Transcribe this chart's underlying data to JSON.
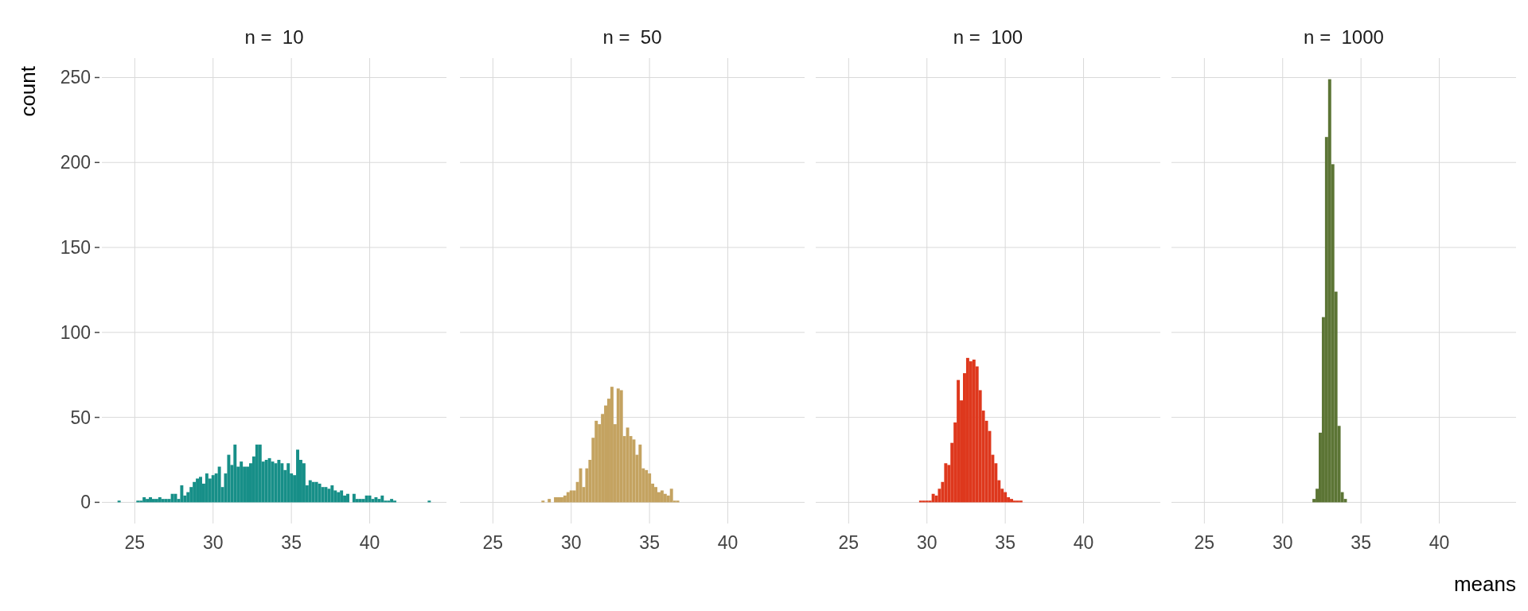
{
  "chart_data": [
    {
      "type": "histogram",
      "title": "n =  10",
      "ylabel": "count",
      "color": "#178f88",
      "xlim": [
        22.9,
        44.9
      ],
      "ylim": [
        -12.45,
        261.45
      ],
      "xticks": [
        25,
        30,
        35,
        40
      ],
      "yticks": [
        0,
        50,
        100,
        150,
        200,
        250
      ],
      "grid": true,
      "bins": [
        23.9,
        24.1,
        24.3,
        24.5,
        24.7,
        24.9,
        25.1,
        25.3,
        25.5,
        25.7,
        25.9,
        26.1,
        26.3,
        26.5,
        26.7,
        26.9,
        27.1,
        27.3,
        27.5,
        27.7,
        27.9,
        28.1,
        28.3,
        28.5,
        28.7,
        28.9,
        29.1,
        29.3,
        29.5,
        29.7,
        29.9,
        30.1,
        30.3,
        30.5,
        30.7,
        30.9,
        31.1,
        31.3,
        31.5,
        31.7,
        31.9,
        32.1,
        32.3,
        32.5,
        32.7,
        32.9,
        33.1,
        33.3,
        33.5,
        33.7,
        33.9,
        34.1,
        34.3,
        34.5,
        34.7,
        34.9,
        35.1,
        35.3,
        35.5,
        35.7,
        35.9,
        36.1,
        36.3,
        36.5,
        36.7,
        36.9,
        37.1,
        37.3,
        37.5,
        37.7,
        37.9,
        38.1,
        38.3,
        38.5,
        38.7,
        38.9,
        39.1,
        39.3,
        39.5,
        39.7,
        39.9,
        40.1,
        40.3,
        40.5,
        40.7,
        40.9,
        41.1,
        41.3,
        41.5,
        41.7,
        41.9,
        42.1,
        42.3,
        42.5,
        42.7,
        42.9,
        43.1,
        43.3,
        43.5,
        43.7,
        43.9
      ],
      "values": [
        1,
        0,
        0,
        0,
        0,
        0,
        1,
        1,
        3,
        2,
        3,
        2,
        2,
        3,
        2,
        2,
        2,
        5,
        5,
        2,
        10,
        4,
        6,
        9,
        12,
        14,
        15,
        11,
        17,
        14,
        16,
        17,
        21,
        9,
        17,
        28,
        22,
        34,
        21,
        24,
        21,
        21,
        23,
        27,
        34,
        34,
        24,
        25,
        26,
        24,
        23,
        25,
        23,
        19,
        23,
        17,
        16,
        31,
        25,
        23,
        10,
        13,
        12,
        12,
        11,
        9,
        9,
        8,
        10,
        7,
        6,
        7,
        4,
        5,
        0,
        5,
        2,
        2,
        2,
        4,
        4,
        2,
        3,
        2,
        4,
        1,
        1,
        2,
        1,
        0,
        0,
        0,
        0,
        0,
        0,
        0,
        0,
        0,
        0,
        1
      ]
    },
    {
      "type": "histogram",
      "title": "n =  50",
      "color": "#c4a361",
      "xlim": [
        22.9,
        44.9
      ],
      "ylim": [
        -12.45,
        261.45
      ],
      "xticks": [
        25,
        30,
        35,
        40
      ],
      "yticks": [
        0,
        50,
        100,
        150,
        200,
        250
      ],
      "grid": true,
      "tick_labels": "x",
      "bins": [
        28.1,
        28.3,
        28.5,
        28.7,
        28.9,
        29.1,
        29.3,
        29.5,
        29.7,
        29.9,
        30.1,
        30.3,
        30.5,
        30.7,
        30.9,
        31.1,
        31.3,
        31.5,
        31.7,
        31.9,
        32.1,
        32.3,
        32.5,
        32.7,
        32.9,
        33.1,
        33.3,
        33.5,
        33.7,
        33.9,
        34.1,
        34.3,
        34.5,
        34.7,
        34.9,
        35.1,
        35.3,
        35.5,
        35.7,
        35.9,
        36.1,
        36.3,
        36.5,
        36.7,
        36.9
      ],
      "values": [
        1,
        0,
        2,
        0,
        3,
        3,
        3,
        4,
        6,
        7,
        7,
        12,
        20,
        9,
        20,
        25,
        38,
        48,
        46,
        52,
        57,
        61,
        68,
        46,
        67,
        66,
        39,
        44,
        39,
        37,
        28,
        34,
        20,
        19,
        17,
        11,
        9,
        6,
        7,
        5,
        4,
        8,
        1,
        1
      ]
    },
    {
      "type": "histogram",
      "title": "n =  100",
      "color": "#de381d",
      "xlim": [
        22.9,
        44.9
      ],
      "ylim": [
        -12.45,
        261.45
      ],
      "xticks": [
        25,
        30,
        35,
        40
      ],
      "yticks": [
        0,
        50,
        100,
        150,
        200,
        250
      ],
      "grid": true,
      "tick_labels": "x",
      "bins": [
        29.5,
        29.7,
        29.9,
        30.1,
        30.3,
        30.5,
        30.7,
        30.9,
        31.1,
        31.3,
        31.5,
        31.7,
        31.9,
        32.1,
        32.3,
        32.5,
        32.7,
        32.9,
        33.1,
        33.3,
        33.5,
        33.7,
        33.9,
        34.1,
        34.3,
        34.5,
        34.7,
        34.9,
        35.1,
        35.3,
        35.5,
        35.7,
        35.9,
        36.1
      ],
      "values": [
        1,
        1,
        1,
        1,
        5,
        4,
        8,
        12,
        23,
        22,
        35,
        47,
        72,
        60,
        76,
        85,
        83,
        84,
        80,
        66,
        54,
        48,
        42,
        28,
        23,
        13,
        8,
        6,
        3,
        2,
        1,
        1,
        1
      ]
    },
    {
      "type": "histogram",
      "title": "n =  1000",
      "xlabel": "means",
      "color": "#5c7535",
      "xlim": [
        22.9,
        44.9
      ],
      "ylim": [
        -12.45,
        261.45
      ],
      "xticks": [
        25,
        30,
        35,
        40
      ],
      "yticks": [
        0,
        50,
        100,
        150,
        200,
        250
      ],
      "grid": true,
      "tick_labels": "x",
      "bins": [
        31.9,
        32.1,
        32.3,
        32.5,
        32.7,
        32.9,
        33.1,
        33.3,
        33.5,
        33.7,
        33.9,
        34.1
      ],
      "values": [
        2,
        8,
        41,
        109,
        215,
        249,
        199,
        124,
        45,
        6,
        2
      ]
    }
  ]
}
